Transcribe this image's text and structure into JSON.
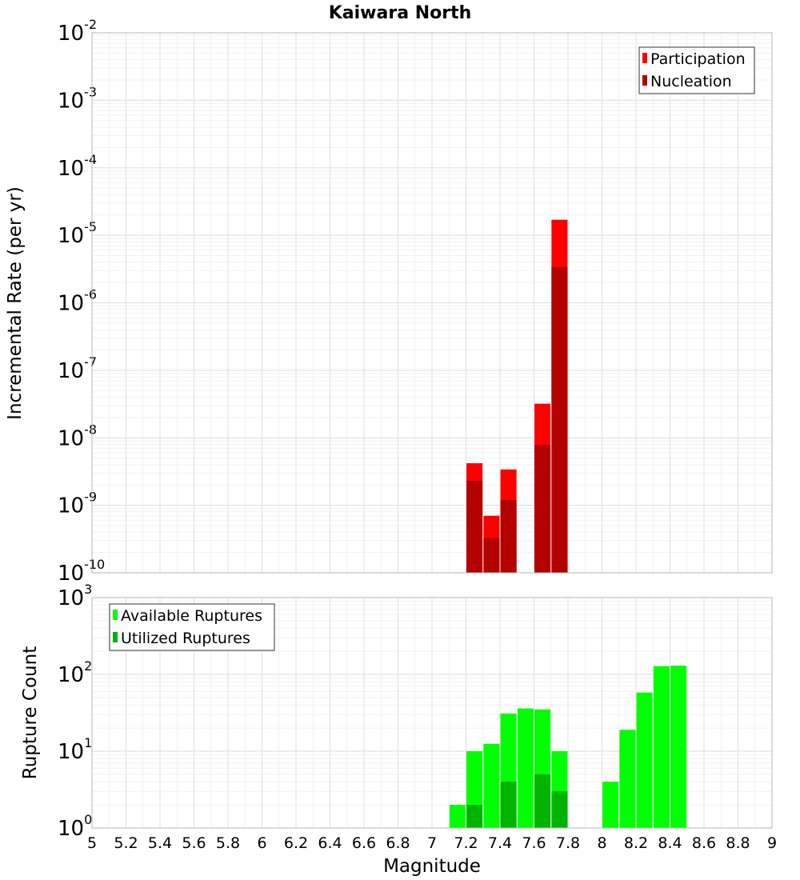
{
  "chart_data": [
    {
      "type": "bar",
      "title": "Kaiwara North",
      "xlabel": "Magnitude",
      "ylabel": "Incremental Rate (per yr)",
      "yscale": "log",
      "ylim_exponents": [
        -10,
        -2
      ],
      "xlim": [
        5,
        9
      ],
      "legend_position": "top-right",
      "legend": [
        "Participation",
        "Nucleation"
      ],
      "colors": {
        "Participation": "#ff0000",
        "Nucleation": "#b30000"
      },
      "series": [
        {
          "name": "Participation",
          "x": [
            7.25,
            7.35,
            7.45,
            7.65,
            7.75
          ],
          "values": [
            4.2e-09,
            7e-10,
            3.4e-09,
            3.2e-08,
            1.7e-05
          ]
        },
        {
          "name": "Nucleation",
          "x": [
            7.25,
            7.35,
            7.45,
            7.65,
            7.75
          ],
          "values": [
            2.3e-09,
            3.3e-10,
            1.2e-09,
            7.8e-09,
            3.4e-06
          ]
        }
      ]
    },
    {
      "type": "bar",
      "title": "",
      "xlabel": "Magnitude",
      "ylabel": "Rupture Count",
      "yscale": "log",
      "ylim_exponents": [
        0,
        3
      ],
      "xlim": [
        5,
        9
      ],
      "legend_position": "top-left",
      "legend": [
        "Available Ruptures",
        "Utilized Ruptures"
      ],
      "colors": {
        "Available Ruptures": "#00ff00",
        "Utilized Ruptures": "#00b300"
      },
      "series": [
        {
          "name": "Available Ruptures",
          "x": [
            7.05,
            7.15,
            7.25,
            7.35,
            7.45,
            7.55,
            7.65,
            7.75,
            8.05,
            8.15,
            8.25,
            8.35,
            8.45
          ],
          "values": [
            1,
            2,
            10,
            12.5,
            31,
            36,
            35,
            10,
            4,
            19,
            58,
            128,
            130
          ]
        },
        {
          "name": "Utilized Ruptures",
          "x": [
            7.15,
            7.25,
            7.35,
            7.45,
            7.65,
            7.75
          ],
          "values": [
            1,
            2,
            1,
            4,
            5,
            3
          ]
        }
      ],
      "xticks": [
        "5",
        "5.2",
        "5.4",
        "5.6",
        "5.8",
        "6",
        "6.2",
        "6.4",
        "6.6",
        "6.8",
        "7",
        "7.2",
        "7.4",
        "7.6",
        "7.8",
        "8",
        "8.2",
        "8.4",
        "8.6",
        "8.8",
        "9"
      ]
    }
  ]
}
